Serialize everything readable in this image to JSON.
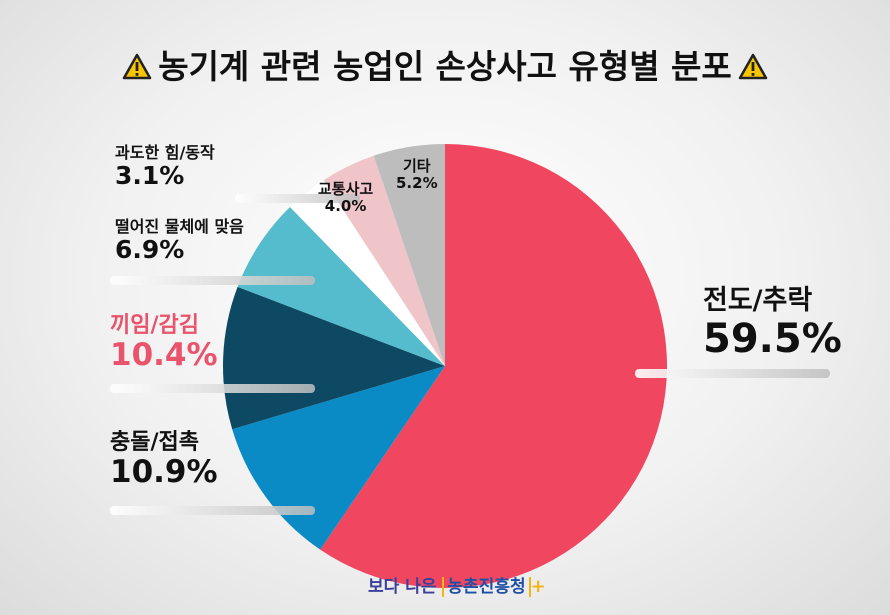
{
  "title": "농기계 관련 농업인 손상사고 유형별 분포",
  "title_icon": "warning-icon",
  "chart_data": {
    "type": "pie",
    "title": "농기계 관련 농업인 손상사고 유형별 분포",
    "unit": "%",
    "slices": [
      {
        "label": "전도/추락",
        "value": 59.5,
        "value_text": "59.5%",
        "color": "#f04660"
      },
      {
        "label": "충돌/접촉",
        "value": 10.9,
        "value_text": "10.9%",
        "color": "#0b8bc5"
      },
      {
        "label": "끼임/감김",
        "value": 10.4,
        "value_text": "10.4%",
        "color": "#0d4963"
      },
      {
        "label": "떨어진 물체에 맞음",
        "value": 6.9,
        "value_text": "6.9%",
        "color": "#55bccd"
      },
      {
        "label": "과도한 힘/동작",
        "value": 3.1,
        "value_text": "3.1%",
        "color": "#ffffff"
      },
      {
        "label": "교통사고",
        "value": 4.0,
        "value_text": "4.0%",
        "color": "#efc5c9"
      },
      {
        "label": "기타",
        "value": 5.2,
        "value_text": "5.2%",
        "color": "#bdbdbd"
      }
    ],
    "highlight": "끼임/감김",
    "highlight_color": "#e9536b",
    "start": "12 o'clock",
    "direction": "clockwise"
  },
  "logo": {
    "part1": "보다 나은",
    "part2": "농촌진흥청",
    "plus": "+"
  }
}
